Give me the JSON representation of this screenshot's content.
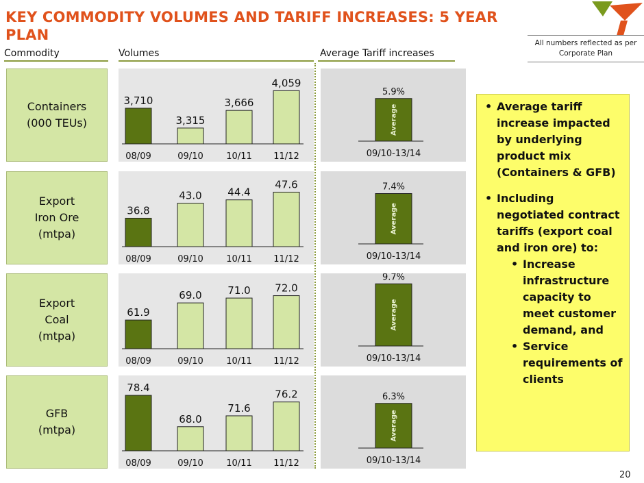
{
  "title": "KEY COMMODITY VOLUMES AND TARIFF INCREASES: 5 YEAR PLAN",
  "note": "All numbers reflected as per Corporate Plan",
  "page_number": "20",
  "columns": {
    "commodity": "Commodity",
    "volumes": "Volumes",
    "tariffs": "Average Tariff increases"
  },
  "colors": {
    "title": "#e0521c",
    "dark_bar": "#5a7412",
    "light_bar": "#d4e6a5",
    "bullet_box": "#fdfd6a"
  },
  "commodities": [
    {
      "line1": "Containers",
      "line2": "(000 TEUs)",
      "line3": ""
    },
    {
      "line1": "Export",
      "line2": "Iron Ore",
      "line3": "(mtpa)"
    },
    {
      "line1": "Export",
      "line2": "Coal",
      "line3": "(mtpa)"
    },
    {
      "line1": "GFB",
      "line2": "(mtpa)",
      "line3": ""
    }
  ],
  "bullets": {
    "b1": "Average tariff increase impacted by underlying product mix (Containers & GFB)",
    "b2": "Including negotiated contract tariffs (export coal and iron ore) to:",
    "s1": "Increase infrastructure capacity to meet customer demand, and",
    "s2": "Service requirements of clients"
  },
  "chart_data": [
    {
      "type": "bar",
      "categories": [
        "08/09",
        "09/10",
        "10/11",
        "11/12"
      ],
      "values": [
        3710,
        3315,
        3666,
        4059
      ],
      "labels": [
        "3,710",
        "3,315",
        "3,666",
        "4,059"
      ],
      "ylim": [
        3000,
        4200
      ]
    },
    {
      "type": "bar",
      "categories": [
        "08/09",
        "09/10",
        "10/11",
        "11/12"
      ],
      "values": [
        36.8,
        43.0,
        44.4,
        47.6
      ],
      "labels": [
        "36.8",
        "43.0",
        "44.4",
        "47.6"
      ],
      "ylim": [
        25,
        50
      ]
    },
    {
      "type": "bar",
      "categories": [
        "08/09",
        "09/10",
        "10/11",
        "11/12"
      ],
      "values": [
        61.9,
        69.0,
        71.0,
        72.0
      ],
      "labels": [
        "61.9",
        "69.0",
        "71.0",
        "72.0"
      ],
      "ylim": [
        50,
        75
      ]
    },
    {
      "type": "bar",
      "categories": [
        "08/09",
        "09/10",
        "10/11",
        "11/12"
      ],
      "values": [
        78.4,
        68.0,
        71.6,
        76.2
      ],
      "labels": [
        "78.4",
        "68.0",
        "71.6",
        "76.2"
      ],
      "ylim": [
        60,
        80
      ]
    },
    {
      "type": "bar",
      "categories": [
        "09/10-13/14"
      ],
      "values": [
        5.9
      ],
      "labels": [
        "5.9%"
      ],
      "bar_text": "Average"
    },
    {
      "type": "bar",
      "categories": [
        "09/10-13/14"
      ],
      "values": [
        7.4
      ],
      "labels": [
        "7.4%"
      ],
      "bar_text": "Average"
    },
    {
      "type": "bar",
      "categories": [
        "09/10-13/14"
      ],
      "values": [
        9.7
      ],
      "labels": [
        "9.7%"
      ],
      "bar_text": "Average"
    },
    {
      "type": "bar",
      "categories": [
        "09/10-13/14"
      ],
      "values": [
        6.3
      ],
      "labels": [
        "6.3%"
      ],
      "bar_text": "Average"
    }
  ]
}
